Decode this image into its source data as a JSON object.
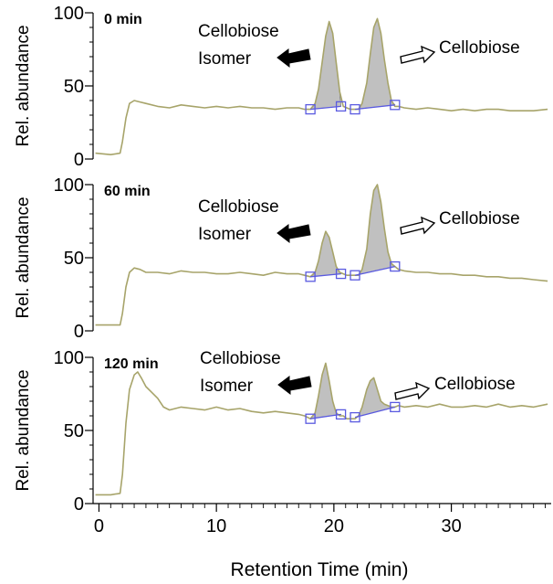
{
  "colors": {
    "trace": "#a7a46a",
    "peak_fill": "#c0c0c0",
    "baseline_marker": "#5a5ae0",
    "axis": "#000000"
  },
  "icons": {
    "isomer_arrow": "left-solid-arrow-icon",
    "cellobiose_arrow": "right-outline-arrow-icon"
  },
  "figure": {
    "xlabel": "Retention Time (min)",
    "ylabel": "Rel. abundance",
    "x_ticks": [
      "0",
      "10",
      "20",
      "30"
    ]
  },
  "chart_data": [
    {
      "type": "line",
      "panel_label": "0 min",
      "xlabel": "Retention Time (min)",
      "ylabel": "Rel. abundance",
      "xlim": [
        -0.5,
        38.5
      ],
      "ylim": [
        0,
        100
      ],
      "y_ticks": [
        "0",
        "50",
        "100"
      ],
      "series": [
        {
          "x": [
            -0.3,
            1.0,
            1.8,
            2.0,
            2.3,
            2.6,
            3.0,
            3.5,
            4,
            5,
            6,
            7,
            8,
            9,
            10,
            11,
            12,
            13,
            14,
            15,
            16,
            17,
            17.5,
            18.0,
            18.4,
            18.7,
            19.0,
            19.3,
            19.6,
            19.9,
            20.2,
            20.5,
            20.8,
            21.1,
            21.4,
            21.8,
            22.1,
            22.4,
            22.8,
            23.1,
            23.4,
            23.7,
            24.0,
            24.3,
            24.6,
            24.9,
            25.2,
            25.5,
            26,
            27,
            28,
            29,
            30,
            31,
            32,
            33,
            34,
            35,
            36,
            37,
            38.2
          ],
          "y": [
            4,
            3,
            4,
            12,
            28,
            38,
            40,
            39,
            38,
            36,
            35,
            37,
            36,
            35,
            36,
            35,
            36,
            35,
            35,
            34,
            35,
            35,
            34,
            34,
            38,
            48,
            66,
            84,
            94,
            86,
            66,
            46,
            36,
            35,
            34,
            34,
            34,
            38,
            52,
            72,
            90,
            96,
            86,
            68,
            52,
            40,
            36,
            36,
            35,
            34,
            35,
            34,
            33,
            34,
            33,
            34,
            34,
            33,
            33,
            33,
            34
          ]
        }
      ],
      "annotations": [
        {
          "text": "Cellobiose Isomer",
          "points_to_x": 19.3
        },
        {
          "text": "Cellobiose",
          "points_to_x": 23.5
        }
      ],
      "baseline_markers": {
        "isomer": [
          [
            18.0,
            34
          ],
          [
            20.6,
            36
          ]
        ],
        "cellobiose": [
          [
            21.8,
            34
          ],
          [
            25.2,
            37
          ]
        ]
      }
    },
    {
      "type": "line",
      "panel_label": "60 min",
      "xlabel": "Retention Time (min)",
      "ylabel": "Rel. abundance",
      "xlim": [
        -0.5,
        38.5
      ],
      "ylim": [
        0,
        100
      ],
      "y_ticks": [
        "0",
        "50",
        "100"
      ],
      "series": [
        {
          "x": [
            -0.3,
            1.0,
            1.8,
            2.0,
            2.3,
            2.6,
            3.0,
            3.5,
            4,
            5,
            6,
            7,
            8,
            9,
            10,
            11,
            12,
            13,
            14,
            15,
            16,
            17,
            17.5,
            18.0,
            18.4,
            18.7,
            19.0,
            19.3,
            19.6,
            19.9,
            20.2,
            20.5,
            20.8,
            21.1,
            21.4,
            21.8,
            22.1,
            22.4,
            22.8,
            23.1,
            23.4,
            23.7,
            24.0,
            24.3,
            24.6,
            24.9,
            25.2,
            25.5,
            26,
            27,
            28,
            29,
            30,
            31,
            32,
            33,
            34,
            35,
            36,
            37,
            38.2
          ],
          "y": [
            4,
            4,
            4,
            12,
            30,
            40,
            43,
            42,
            40,
            40,
            39,
            41,
            40,
            40,
            39,
            39,
            40,
            39,
            38,
            40,
            39,
            39,
            38,
            37,
            40,
            48,
            60,
            68,
            64,
            54,
            44,
            40,
            39,
            38,
            38,
            38,
            38,
            42,
            56,
            80,
            96,
            100,
            88,
            70,
            54,
            46,
            44,
            42,
            41,
            40,
            40,
            39,
            39,
            38,
            38,
            37,
            37,
            36,
            36,
            35,
            34
          ]
        }
      ],
      "annotations": [
        {
          "text": "Cellobiose Isomer",
          "points_to_x": 19.3
        },
        {
          "text": "Cellobiose",
          "points_to_x": 23.7
        }
      ],
      "baseline_markers": {
        "isomer": [
          [
            18.0,
            37
          ],
          [
            20.6,
            39
          ]
        ],
        "cellobiose": [
          [
            21.8,
            38
          ],
          [
            25.2,
            44
          ]
        ]
      }
    },
    {
      "type": "line",
      "panel_label": "120 min",
      "xlabel": "Retention Time (min)",
      "ylabel": "Rel. abundance",
      "xlim": [
        -0.5,
        38.5
      ],
      "ylim": [
        0,
        100
      ],
      "y_ticks": [
        "0",
        "50",
        "100"
      ],
      "series": [
        {
          "x": [
            -0.3,
            1.0,
            1.8,
            2.0,
            2.3,
            2.6,
            3.0,
            3.3,
            3.6,
            4.0,
            4.5,
            5,
            5.5,
            6,
            7,
            8,
            9,
            10,
            11,
            12,
            13,
            14,
            15,
            16,
            17,
            17.5,
            18.0,
            18.4,
            18.7,
            19.0,
            19.3,
            19.6,
            19.9,
            20.2,
            20.5,
            20.8,
            21.1,
            21.4,
            21.8,
            22.1,
            22.4,
            22.8,
            23.1,
            23.4,
            23.7,
            24.0,
            24.3,
            24.6,
            24.9,
            25.2,
            25.5,
            26,
            27,
            28,
            29,
            30,
            31,
            32,
            33,
            34,
            35,
            36,
            37,
            38.2
          ],
          "y": [
            6,
            6,
            7,
            20,
            55,
            78,
            88,
            90,
            86,
            80,
            76,
            72,
            66,
            64,
            66,
            65,
            64,
            66,
            64,
            65,
            63,
            62,
            63,
            62,
            61,
            60,
            58,
            62,
            74,
            88,
            96,
            84,
            70,
            62,
            60,
            60,
            58,
            58,
            58,
            60,
            66,
            78,
            84,
            86,
            78,
            70,
            68,
            67,
            66,
            66,
            67,
            66,
            67,
            66,
            68,
            66,
            66,
            67,
            66,
            68,
            66,
            67,
            66,
            68
          ]
        }
      ],
      "annotations": [
        {
          "text": "Cellobiose Isomer",
          "points_to_x": 19.3
        },
        {
          "text": "Cellobiose",
          "points_to_x": 23.4
        }
      ],
      "baseline_markers": {
        "isomer": [
          [
            18.0,
            58
          ],
          [
            20.6,
            61
          ]
        ],
        "cellobiose": [
          [
            21.8,
            59
          ],
          [
            25.2,
            66
          ]
        ]
      }
    }
  ]
}
